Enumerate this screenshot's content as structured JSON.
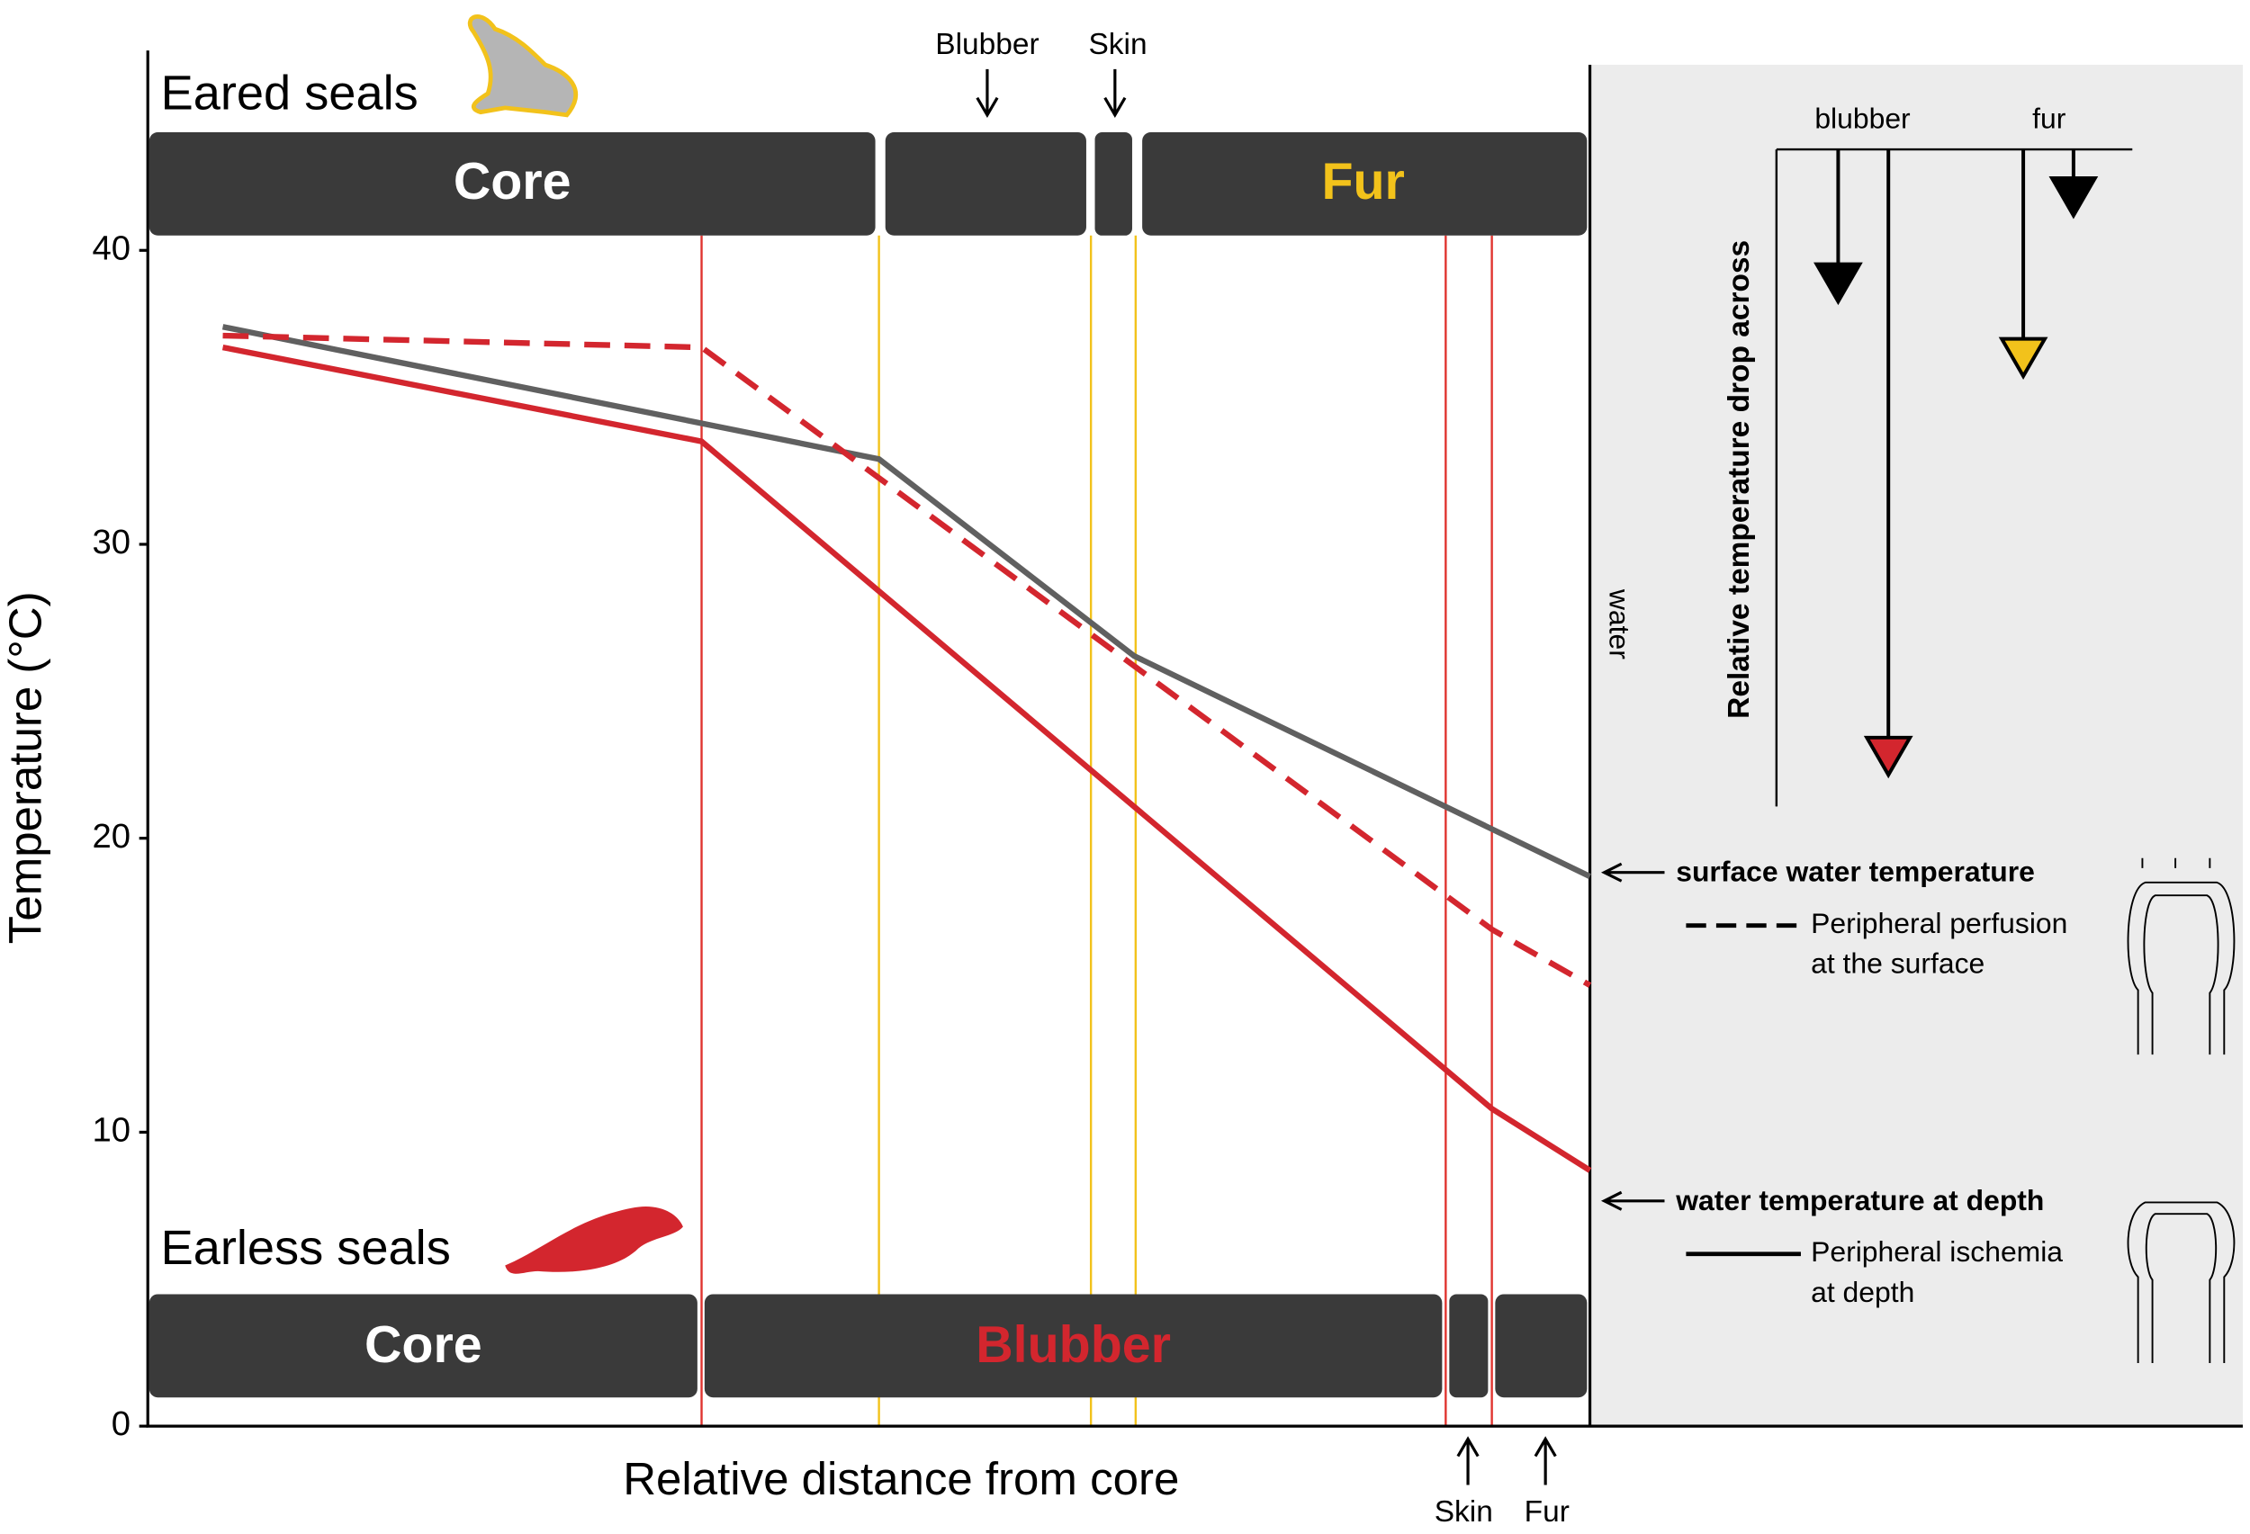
{
  "chart_data": {
    "type": "line",
    "ylabel": "Temperature (°C)",
    "xlabel": "Relative distance from core",
    "ylim": [
      0,
      46.8
    ],
    "yticks": [
      0,
      10,
      20,
      30,
      40
    ],
    "xlim": [
      0,
      1
    ],
    "series": [
      {
        "color": "#606060",
        "dash": false,
        "x": [
          0.052,
          0.507,
          0.684,
          1.0
        ],
        "values": [
          37.4,
          32.9,
          26.2,
          18.7
        ]
      },
      {
        "color": "#d3262e",
        "dash": true,
        "x": [
          0.052,
          0.384,
          0.932,
          1.0
        ],
        "values": [
          37.1,
          36.7,
          16.9,
          15.0
        ]
      },
      {
        "color": "#d3262e",
        "dash": false,
        "x": [
          0.052,
          0.384,
          0.932,
          1.0
        ],
        "values": [
          36.7,
          33.5,
          10.8,
          8.7
        ]
      }
    ],
    "boundaries": [
      {
        "color": "#e0342f",
        "x": [
          0.384,
          0.9,
          0.932
        ]
      },
      {
        "color": "#f2c21b",
        "x": [
          0.507,
          0.654,
          0.685
        ]
      }
    ],
    "eared": {
      "label": "Eared seals",
      "core": "Core",
      "fur": "Fur",
      "blubber": "Blubber",
      "skin": "Skin"
    },
    "earless": {
      "label": "Earless seals",
      "core": "Core",
      "blubber": "Blubber",
      "skin": "Skin",
      "fur": "Fur"
    },
    "inset": {
      "blubber": "blubber",
      "fur": "fur",
      "ylabel": "Relative temperature drop across"
    },
    "water": "water",
    "surface": {
      "label": "surface water temperature",
      "line1": "Peripheral perfusion",
      "line2": "at the surface"
    },
    "depth": {
      "label": "water temperature at depth",
      "line1": "Peripheral ischemia",
      "line2": "at depth"
    }
  }
}
